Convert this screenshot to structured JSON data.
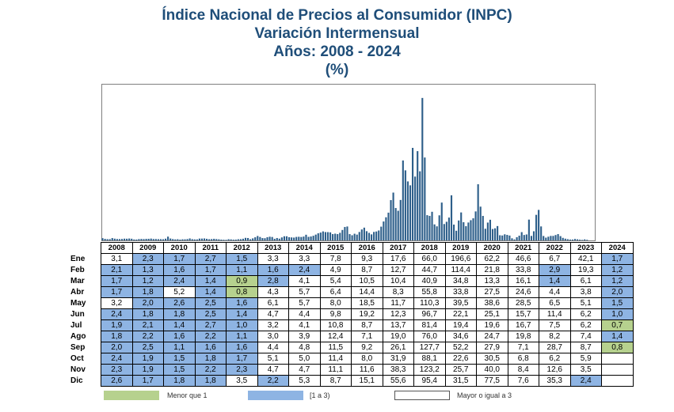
{
  "titles": {
    "line1": "Índice Nacional de Precios al Consumidor (INPC)",
    "line2": "Variación Intermensual",
    "line3": "Años: 2008 - 2024",
    "line4": "(%)"
  },
  "colors": {
    "bars": "#2e5f8a",
    "low": "#b6d18e",
    "mid": "#8eb4e3",
    "high": "#ffffff",
    "title": "#1f4e79"
  },
  "legend": {
    "low_label": "Menor que 1",
    "mid_label": "[1 a 3)",
    "high_label": "Mayor o igual a 3"
  },
  "chart_data": {
    "type": "bar",
    "months": [
      "Ene",
      "Feb",
      "Mar",
      "Abr",
      "May",
      "Jun",
      "Jul",
      "Ago",
      "Sep",
      "Oct",
      "Nov",
      "Dic"
    ],
    "years": [
      "2008",
      "2009",
      "2010",
      "2011",
      "2012",
      "2013",
      "2014",
      "2015",
      "2016",
      "2017",
      "2018",
      "2019",
      "2020",
      "2021",
      "2022",
      "2023",
      "2024"
    ],
    "values": [
      [
        "3,1",
        "2,1",
        "1,7",
        "1,7",
        "3,2",
        "2,4",
        "1,9",
        "1,8",
        "2,0",
        "2,4",
        "2,3",
        "2,6"
      ],
      [
        "2,3",
        "1,3",
        "1,2",
        "1,8",
        "2,0",
        "1,8",
        "2,1",
        "2,2",
        "2,5",
        "1,9",
        "1,9",
        "1,7"
      ],
      [
        "1,7",
        "1,6",
        "2,4",
        "5,2",
        "2,6",
        "1,8",
        "1,4",
        "1,6",
        "1,1",
        "1,5",
        "1,5",
        "1,8"
      ],
      [
        "2,7",
        "1,7",
        "1,4",
        "1,4",
        "2,5",
        "2,5",
        "2,7",
        "2,2",
        "1,6",
        "1,8",
        "2,2",
        "1,8"
      ],
      [
        "1,5",
        "1,1",
        "0,9",
        "0,8",
        "1,6",
        "1,4",
        "1,0",
        "1,1",
        "1,6",
        "1,7",
        "2,3",
        "3,5"
      ],
      [
        "3,3",
        "1,6",
        "2,8",
        "4,3",
        "6,1",
        "4,7",
        "3,2",
        "3,0",
        "4,4",
        "5,1",
        "4,7",
        "2,2"
      ],
      [
        "3,3",
        "2,4",
        "4,1",
        "5,7",
        "5,7",
        "4,4",
        "4,1",
        "3,9",
        "4,8",
        "5,0",
        "4,7",
        "5,3"
      ],
      [
        "7,8",
        "4,9",
        "5,4",
        "6,4",
        "8,0",
        "9,8",
        "10,8",
        "12,4",
        "11,5",
        "11,4",
        "11,1",
        "8,7"
      ],
      [
        "9,3",
        "8,7",
        "10,5",
        "14,4",
        "18,5",
        "19,2",
        "8,7",
        "7,1",
        "9,2",
        "8,0",
        "11,6",
        "15,1"
      ],
      [
        "17,6",
        "12,7",
        "10,4",
        "8,3",
        "11,7",
        "12,3",
        "13,7",
        "19,0",
        "26,1",
        "31,9",
        "38,3",
        "55,6"
      ],
      [
        "66,0",
        "44,7",
        "40,9",
        "55,8",
        "110,3",
        "96,7",
        "81,4",
        "76,0",
        "127,7",
        "88,1",
        "123,2",
        "95,4"
      ],
      [
        "196,6",
        "114,4",
        "34,8",
        "33,8",
        "39,5",
        "22,1",
        "19,4",
        "34,6",
        "52,2",
        "22,6",
        "25,7",
        "31,5"
      ],
      [
        "62,2",
        "21,8",
        "13,3",
        "27,5",
        "38,6",
        "25,1",
        "19,6",
        "24,7",
        "27,9",
        "30,5",
        "40,0",
        "77,5"
      ],
      [
        "46,6",
        "33,8",
        "16,1",
        "24,6",
        "28,5",
        "15,7",
        "16,7",
        "19,8",
        "7,1",
        "6,8",
        "8,4",
        "7,6"
      ],
      [
        "6,7",
        "2,9",
        "1,4",
        "4,4",
        "6,5",
        "11,4",
        "7,5",
        "8,2",
        "28,7",
        "6,2",
        "12,6",
        "35,3"
      ],
      [
        "42,1",
        "19,3",
        "6,1",
        "3,8",
        "5,1",
        "6,2",
        "6,2",
        "7,4",
        "8,7",
        "5,9",
        "3,5",
        "2,4"
      ],
      [
        "1,7",
        "1,2",
        "1,2",
        "2,0",
        "1,5",
        "1,0",
        "0,7",
        "1,4",
        "0,8",
        "",
        "",
        ""
      ]
    ]
  }
}
